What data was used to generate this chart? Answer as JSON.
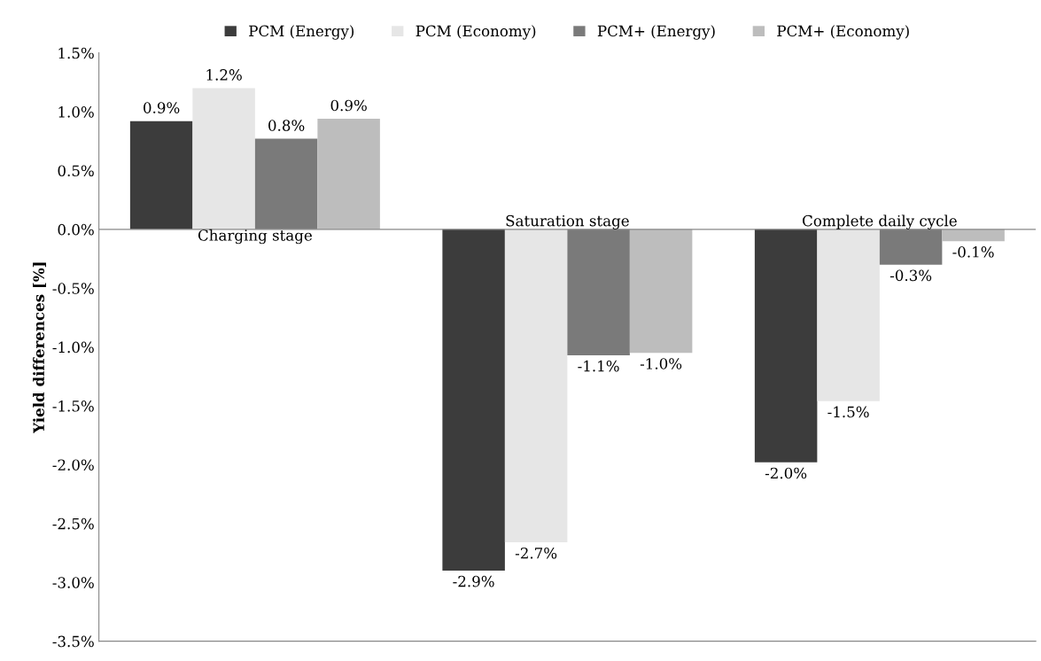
{
  "chart_data": {
    "type": "bar",
    "ylabel": "Yield differences [%]",
    "categories": [
      "Charging stage",
      "Saturation stage",
      "Complete daily cycle"
    ],
    "series": [
      {
        "name": "PCM (Energy)",
        "color": "#3c3c3c",
        "values": [
          0.92,
          -2.9,
          -1.98
        ],
        "value_labels": [
          "0.9%",
          "-2.9%",
          "-2.0%"
        ]
      },
      {
        "name": "PCM (Economy)",
        "color": "#e6e6e6",
        "values": [
          1.2,
          -2.66,
          -1.46
        ],
        "value_labels": [
          "1.2%",
          "-2.7%",
          "-1.5%"
        ]
      },
      {
        "name": "PCM+ (Energy)",
        "color": "#7a7a7a",
        "values": [
          0.77,
          -1.07,
          -0.3
        ],
        "value_labels": [
          "0.8%",
          "-1.1%",
          "-0.3%"
        ]
      },
      {
        "name": "PCM+ (Economy)",
        "color": "#bdbdbd",
        "values": [
          0.94,
          -1.05,
          -0.1
        ],
        "value_labels": [
          "0.9%",
          "-1.0%",
          "-0.1%"
        ]
      }
    ],
    "ylim": [
      -3.5,
      1.5
    ],
    "yticks": [
      {
        "value": -3.5,
        "label": "-3.5%"
      },
      {
        "value": -3.0,
        "label": "-3.0%"
      },
      {
        "value": -2.5,
        "label": "-2.5%"
      },
      {
        "value": -2.0,
        "label": "-2.0%"
      },
      {
        "value": -1.5,
        "label": "-1.5%"
      },
      {
        "value": -1.0,
        "label": "-1.0%"
      },
      {
        "value": -0.5,
        "label": "-0.5%"
      },
      {
        "value": 0.0,
        "label": "0.0%"
      },
      {
        "value": 0.5,
        "label": "0.5%"
      },
      {
        "value": 1.0,
        "label": "1.0%"
      },
      {
        "value": 1.5,
        "label": "1.5%"
      }
    ],
    "legend": "top",
    "grid": false
  }
}
